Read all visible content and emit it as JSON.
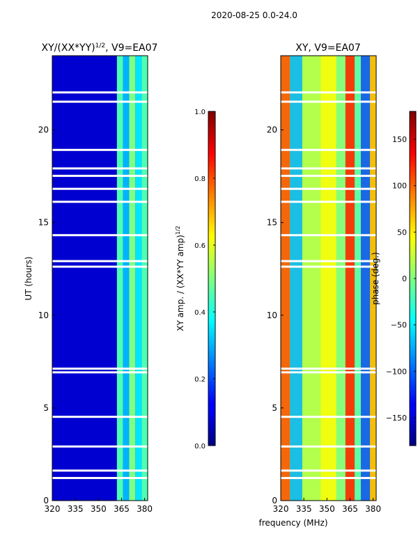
{
  "suptitle": "2020-08-25 0.0-24.0",
  "colors": {
    "background": "#ffffff",
    "deep_blue": "#00007f",
    "blue": "#0000ff",
    "cyan": "#00ffff",
    "yellow": "#ffff00",
    "red": "#ff0000",
    "dark_red": "#7f0000"
  },
  "chart_data": [
    {
      "type": "heatmap",
      "title_main": "XY/(XX*YY)",
      "title_sup": "1/2",
      "title_rest": ", V9=EA07",
      "xlabel": "",
      "ylabel": "UT (hours)",
      "xlim": [
        320,
        382
      ],
      "ylim": [
        0,
        24
      ],
      "xticks": [
        320,
        335,
        350,
        365,
        380
      ],
      "yticks": [
        0,
        5,
        10,
        15,
        20
      ],
      "colorbar": {
        "label_main": "XY amp. / (XX*YY amp)",
        "label_sup": "1/2",
        "range": [
          0.0,
          1.0
        ],
        "ticks": [
          "0.0",
          "0.2",
          "0.4",
          "0.6",
          "0.8",
          "1.0"
        ],
        "tick_values": [
          0.0,
          0.2,
          0.4,
          0.6,
          0.8,
          1.0
        ]
      },
      "band_profile": [
        {
          "from": 320,
          "to": 362,
          "value": 0.08
        },
        {
          "from": 362,
          "to": 366,
          "value": 0.45
        },
        {
          "from": 366,
          "to": 370,
          "value": 0.3
        },
        {
          "from": 370,
          "to": 374,
          "value": 0.5
        },
        {
          "from": 374,
          "to": 378,
          "value": 0.35
        },
        {
          "from": 378,
          "to": 382,
          "value": 0.45
        }
      ],
      "flagged_hours": [
        1.2,
        1.6,
        2.9,
        4.5,
        6.9,
        7.1,
        12.6,
        12.9,
        14.3,
        16.1,
        16.8,
        17.5,
        17.9,
        18.9,
        21.5,
        22.0
      ]
    },
    {
      "type": "heatmap",
      "title_main": "XY, V9=EA07",
      "xlabel": "frequency (MHz)",
      "ylabel": "",
      "xlim": [
        320,
        382
      ],
      "ylim": [
        0,
        24
      ],
      "xticks": [
        320,
        335,
        350,
        365,
        380
      ],
      "yticks": [
        0,
        5,
        10,
        15,
        20
      ],
      "colorbar": {
        "label_main": "phase (deg.)",
        "range": [
          -180,
          180
        ],
        "ticks": [
          "−150",
          "−100",
          "−50",
          "0",
          "50",
          "100",
          "150"
        ],
        "tick_values": [
          -150,
          -100,
          -50,
          0,
          50,
          100,
          150
        ]
      },
      "flagged_hours": [
        1.2,
        1.6,
        2.9,
        4.5,
        6.9,
        7.1,
        12.6,
        12.9,
        14.3,
        16.1,
        16.8,
        17.5,
        17.9,
        18.9,
        21.5,
        22.0
      ]
    }
  ]
}
